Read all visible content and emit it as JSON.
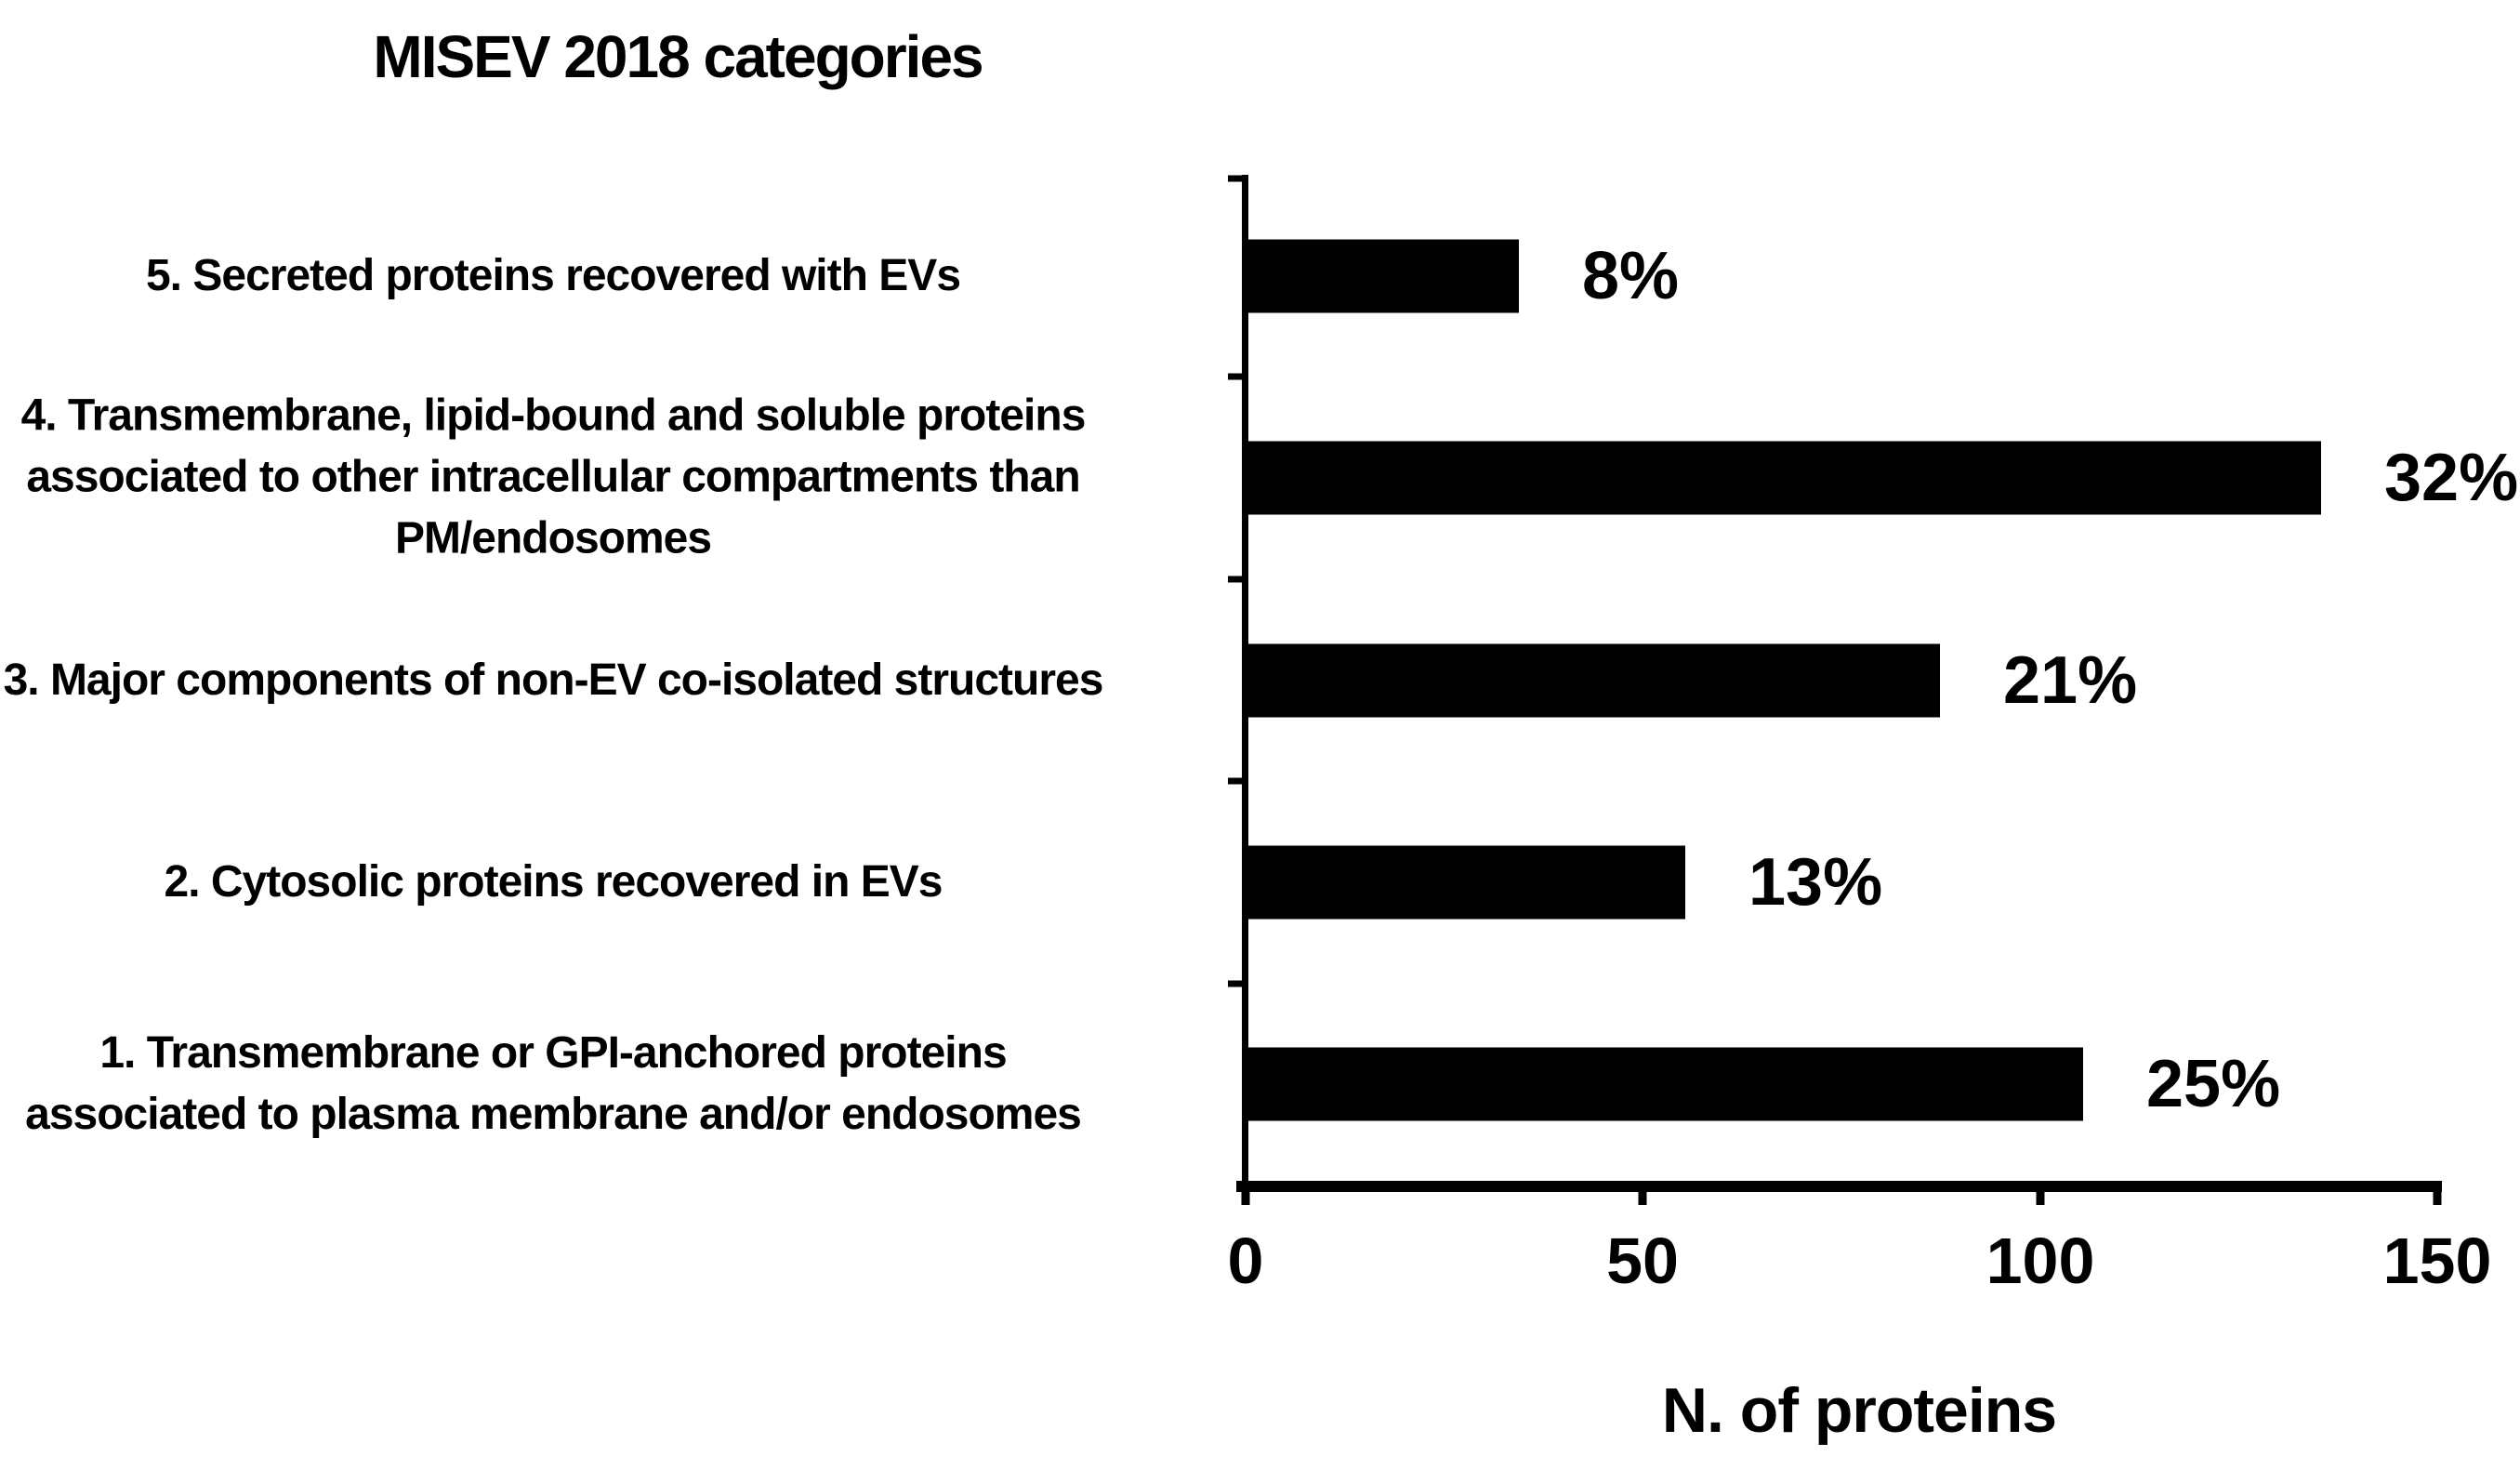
{
  "figure": {
    "title": "MISEV 2018 categories",
    "x_axis_title": "N. of proteins",
    "background_color": "#ffffff",
    "text_color": "#000000"
  },
  "chart_data": {
    "type": "bar",
    "orientation": "horizontal",
    "title": "MISEV 2018 categories",
    "xlabel": "N. of proteins",
    "ylabel": "",
    "xlim": [
      0,
      150
    ],
    "xticks": [
      "0",
      "50",
      "100",
      "150"
    ],
    "grid": false,
    "legend": false,
    "bar_color": "#000000",
    "axis_color": "#000000",
    "categories": [
      "5. Secreted proteins recovered with EVs",
      "4. Transmembrane, lipid-bound and soluble proteins associated to other intracellular compartments than PM/endosomes",
      "3. Major components of non-EV co-isolated structures",
      "2. Cytosolic proteins recovered in EVs",
      "1. Transmembrane or GPI-anchored proteins associated to plasma membrane and/or endosomes"
    ],
    "values": [
      34,
      135,
      87,
      55,
      105
    ],
    "value_labels": [
      "8%",
      "32%",
      "21%",
      "13%",
      "25%"
    ]
  }
}
